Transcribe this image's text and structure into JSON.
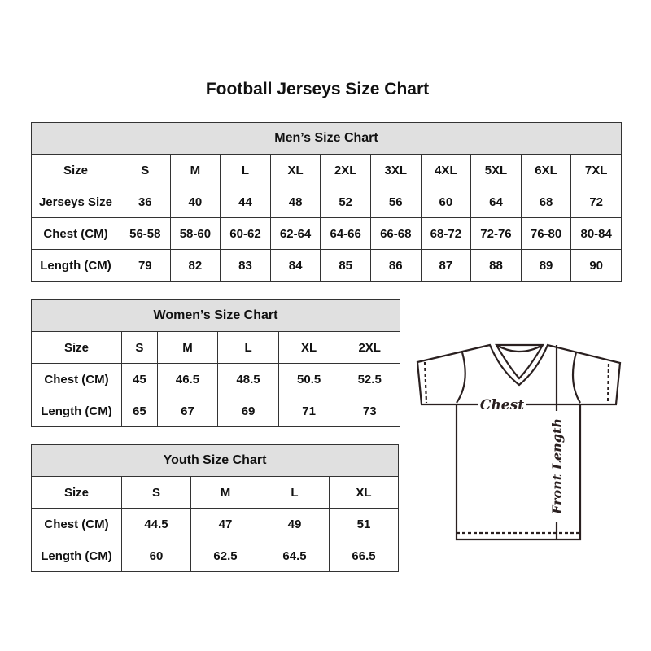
{
  "title": "Football Jerseys Size Chart",
  "men": {
    "title": "Men’s Size Chart",
    "rows": [
      [
        "Size",
        "S",
        "M",
        "L",
        "XL",
        "2XL",
        "3XL",
        "4XL",
        "5XL",
        "6XL",
        "7XL"
      ],
      [
        "Jerseys Size",
        "36",
        "40",
        "44",
        "48",
        "52",
        "56",
        "60",
        "64",
        "68",
        "72"
      ],
      [
        "Chest (CM)",
        "56-58",
        "58-60",
        "60-62",
        "62-64",
        "64-66",
        "66-68",
        "68-72",
        "72-76",
        "76-80",
        "80-84"
      ],
      [
        "Length (CM)",
        "79",
        "82",
        "83",
        "84",
        "85",
        "86",
        "87",
        "88",
        "89",
        "90"
      ]
    ]
  },
  "women": {
    "title": "Women’s Size Chart",
    "rows": [
      [
        "Size",
        "S",
        "M",
        "L",
        "XL",
        "2XL"
      ],
      [
        "Chest (CM)",
        "45",
        "46.5",
        "48.5",
        "50.5",
        "52.5"
      ],
      [
        "Length (CM)",
        "65",
        "67",
        "69",
        "71",
        "73"
      ]
    ]
  },
  "youth": {
    "title": "Youth Size Chart",
    "rows": [
      [
        "Size",
        "S",
        "M",
        "L",
        "XL"
      ],
      [
        "Chest (CM)",
        "44.5",
        "47",
        "49",
        "51"
      ],
      [
        "Length (CM)",
        "60",
        "62.5",
        "64.5",
        "66.5"
      ]
    ]
  },
  "diagram": {
    "chest_label": "Chest",
    "length_label": "Front Length"
  }
}
